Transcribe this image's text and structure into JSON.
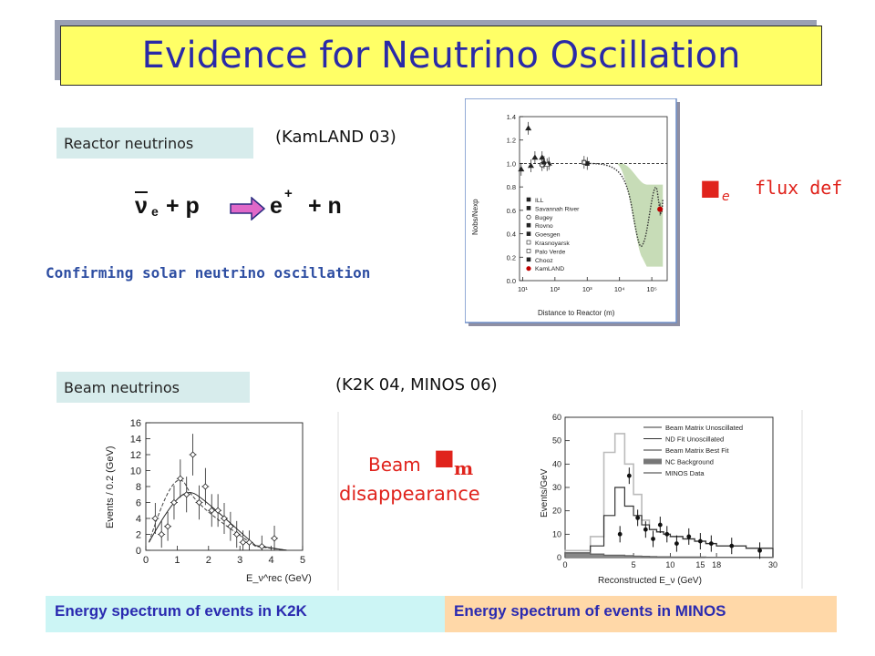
{
  "slide": {
    "title": "Evidence for Neutrino Oscillation",
    "reactor": {
      "label": "Reactor neutrinos",
      "experiment": "(KamLAND 03)",
      "equation": {
        "nu": "ν",
        "nu_sub": "e",
        "plus_p": "+ p",
        "e": "e",
        "e_sup": "+",
        "plus_n": "+ n"
      },
      "confirm": "Confirming solar neutrino oscillation",
      "flux_symbol": "■",
      "flux_sub": "e",
      "flux_text": "flux def"
    },
    "beam": {
      "label": "Beam neutrinos",
      "experiments": "(K2K 04,  MINOS  06)",
      "beam_word": "Beam",
      "beam_symbol": "■",
      "beam_sub": "m",
      "disappearance": "disappearance"
    },
    "captions": {
      "k2k": "Energy spectrum of events in K2K",
      "minos": "Energy spectrum of events in MINOS"
    },
    "colors": {
      "title_bg": "#ffff66",
      "title_text": "#2a2aa8",
      "label_bg": "#d7ecec",
      "red": "#e0231c",
      "caption_k2k_bg": "#ccf5f5",
      "caption_minos_bg": "#ffd8a8",
      "green_band": "#c7dcb7"
    }
  },
  "chart_data": [
    {
      "type": "scatter",
      "xlabel": "Distance to Reactor (m)",
      "ylabel": "Nobs/Nexp",
      "x_scale": "log",
      "xlim": [
        10,
        300000
      ],
      "ylim": [
        0,
        1.4
      ],
      "y_ticks": [
        "1.4",
        "1.2",
        "1.0",
        "0.8",
        "0.6",
        "0.4",
        "0.2",
        "0.0"
      ],
      "x_ticks": [
        "10¹",
        "10²",
        "10³",
        "10⁴",
        "10⁵"
      ],
      "legend": [
        "ILL",
        "Savannah River",
        "Bugey",
        "Rovno",
        "Goesgen",
        "Krasnoyarsk",
        "Palo Verde",
        "Chooz",
        "KamLAND"
      ],
      "points": [
        {
          "x": 9,
          "y": 0.95,
          "set": "ILL"
        },
        {
          "x": 18,
          "y": 0.98,
          "set": "Savannah River"
        },
        {
          "x": 24,
          "y": 1.05,
          "set": "Savannah River"
        },
        {
          "x": 15,
          "y": 1.3,
          "set": "Rovno"
        },
        {
          "x": 40,
          "y": 0.99,
          "set": "Bugey"
        },
        {
          "x": 40,
          "y": 1.05,
          "set": "Goesgen"
        },
        {
          "x": 46,
          "y": 1.01,
          "set": "Goesgen"
        },
        {
          "x": 65,
          "y": 1.0,
          "set": "Goesgen"
        },
        {
          "x": 57,
          "y": 0.99,
          "set": "Krasnoyarsk"
        },
        {
          "x": 1000,
          "y": 1.0,
          "set": "Chooz"
        },
        {
          "x": 800,
          "y": 1.01,
          "set": "Palo Verde"
        },
        {
          "x": 180000,
          "y": 0.61,
          "set": "KamLAND"
        }
      ]
    },
    {
      "type": "line",
      "xlabel": "E_ν^rec (GeV)",
      "ylabel": "Events / 0.2 (GeV)",
      "xlim": [
        0,
        5
      ],
      "ylim": [
        0,
        16
      ],
      "y_ticks": [
        "0",
        "2",
        "4",
        "6",
        "8",
        "10",
        "12",
        "14",
        "16"
      ],
      "x_ticks": [
        "0",
        "1",
        "2",
        "3",
        "4",
        "5"
      ],
      "series": [
        {
          "values_x": [
            0.3,
            0.5,
            0.7,
            0.9,
            1.1,
            1.3,
            1.5,
            1.7,
            1.9,
            2.1,
            2.3,
            2.5,
            2.7,
            2.9,
            3.1,
            3.3,
            3.7,
            4.1
          ],
          "values_y": [
            4,
            2,
            3,
            6,
            9,
            7,
            12,
            6,
            8,
            5,
            5,
            4,
            3,
            2,
            1,
            1,
            0.5,
            1.5
          ]
        }
      ]
    },
    {
      "type": "bar",
      "xlabel": "Reconstructed E_ν (GeV)",
      "ylabel": "Events/GeV",
      "xlim": [
        0,
        30
      ],
      "ylim": [
        0,
        60
      ],
      "y_ticks": [
        "0",
        "10",
        "20",
        "30",
        "40",
        "50",
        "60"
      ],
      "x_ticks": [
        "0",
        "5",
        "10",
        "15",
        "18",
        "30"
      ],
      "legend": [
        "Beam Matrix Unoscillated",
        "ND Fit Unoscillated",
        "Beam Matrix Best Fit",
        "NC Background",
        "MINOS Data"
      ],
      "series": [
        {
          "name": "Beam Matrix Unoscillated",
          "values": [
            3,
            9,
            45,
            53,
            40,
            27,
            16,
            12,
            11,
            10,
            9,
            8,
            7,
            6,
            5,
            4
          ]
        },
        {
          "name": "Beam Matrix Best Fit",
          "values": [
            2,
            5,
            18,
            30,
            22,
            18,
            14,
            12,
            11,
            10,
            9,
            8,
            7,
            6,
            5,
            4
          ]
        },
        {
          "name": "NC Background",
          "values": [
            2,
            1.5,
            1,
            1,
            0.8,
            0.6,
            0.5,
            0.4,
            0.3,
            0.3,
            0.2,
            0.2,
            0.2,
            0.1,
            0.1,
            0.1
          ]
        }
      ]
    }
  ]
}
